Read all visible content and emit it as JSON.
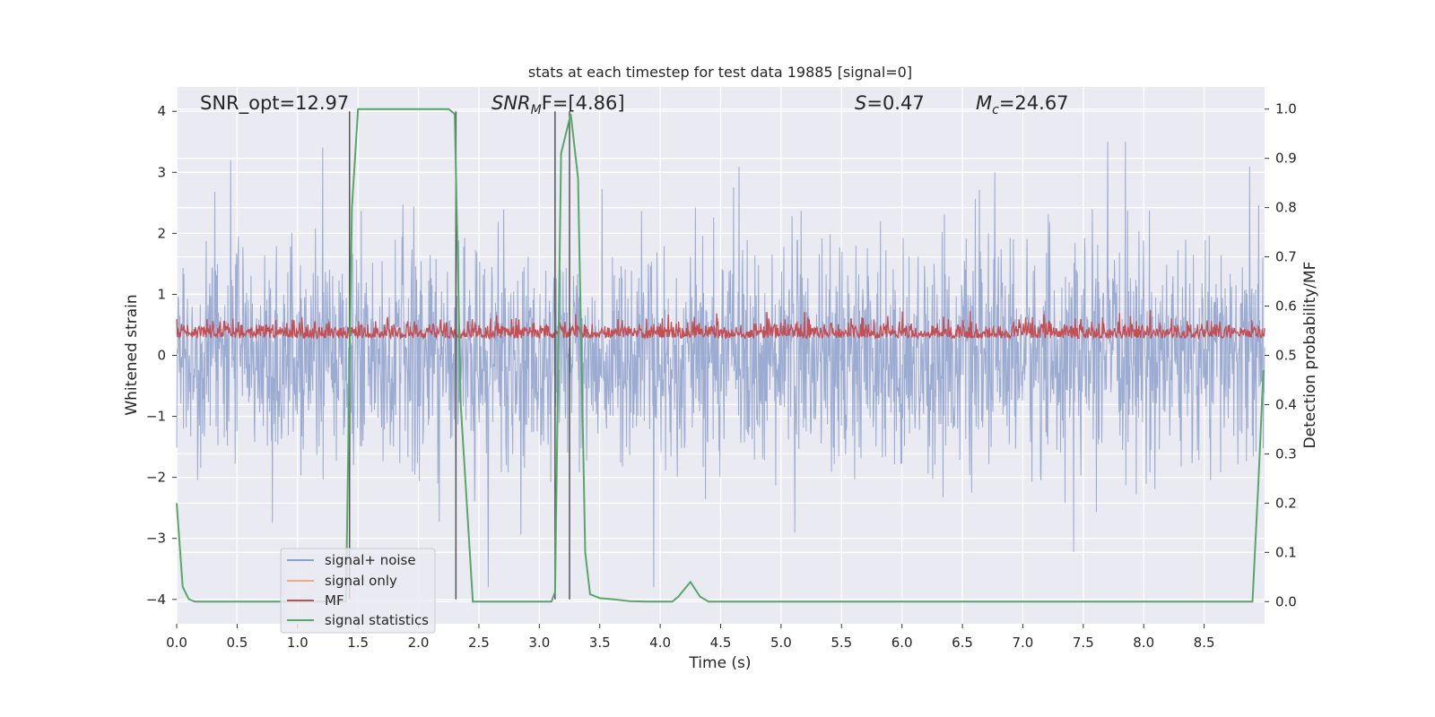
{
  "chart_data": {
    "type": "line",
    "title": "stats at each timestep for test data 19885 [signal=0]",
    "xlabel": "Time (s)",
    "ylabel_left": "Whitened strain",
    "ylabel_right": "Detection probability/MF",
    "xlim": [
      0.0,
      9.0
    ],
    "ylim_left": [
      -4.4,
      4.4
    ],
    "ylim_right": [
      -0.045,
      1.045
    ],
    "x_ticks": [
      "0.0",
      "0.5",
      "1.0",
      "1.5",
      "2.0",
      "2.5",
      "3.0",
      "3.5",
      "4.0",
      "4.5",
      "5.0",
      "5.5",
      "6.0",
      "6.5",
      "7.0",
      "7.5",
      "8.0",
      "8.5"
    ],
    "y_ticks_left": [
      "4",
      "3",
      "2",
      "1",
      "0",
      "−1",
      "−2",
      "−3",
      "−4"
    ],
    "y_ticks_right": [
      "1.0",
      "0.9",
      "0.8",
      "0.7",
      "0.6",
      "0.5",
      "0.4",
      "0.3",
      "0.2",
      "0.1",
      "0.0"
    ],
    "annotations": {
      "snr_opt": "SNR_opt=12.97",
      "snr_mf_base": "SNR",
      "snr_mf_sub": "M",
      "snr_mf_rest": "F=[4.86]",
      "s_label": "S",
      "s_value": "=0.47",
      "mc_label": "M",
      "mc_sub": "c",
      "mc_value": "=24.67"
    },
    "legend": {
      "location": "lower-left",
      "entries": [
        {
          "label": "signal+ noise",
          "color": "#8da0cb"
        },
        {
          "label": "signal only",
          "color": "#f4a582"
        },
        {
          "label": "MF",
          "color": "#c44e52"
        },
        {
          "label": "signal statistics",
          "color": "#55a868"
        }
      ]
    },
    "series": [
      {
        "name": "signal+ noise",
        "axis": "left",
        "color": "#8da0cb",
        "description": "whitened noise, amplitude about +/-1.6 typical, peaks to +/-3.6",
        "typical_envelope": [
          -1.6,
          1.6
        ],
        "peak_range": [
          -3.6,
          3.6
        ]
      },
      {
        "name": "MF",
        "axis": "left",
        "color": "#c44e52",
        "description": "matched filter output, range roughly 0 to 0.7",
        "range": [
          0.0,
          0.75
        ]
      },
      {
        "name": "signal statistics",
        "axis": "right",
        "color": "#55a868",
        "x": [
          0.0,
          0.05,
          0.1,
          0.15,
          0.2,
          0.3,
          0.5,
          0.8,
          1.0,
          1.2,
          1.4,
          1.45,
          1.5,
          2.0,
          2.25,
          2.3,
          2.35,
          2.45,
          2.5,
          3.0,
          3.1,
          3.13,
          3.18,
          3.26,
          3.32,
          3.38,
          3.42,
          3.5,
          3.6,
          3.75,
          3.9,
          4.1,
          4.15,
          4.25,
          4.33,
          4.4,
          5.0,
          6.0,
          7.0,
          8.0,
          8.9,
          8.95,
          8.99
        ],
        "values": [
          0.2,
          0.03,
          0.005,
          0.0,
          0.0,
          0.0,
          0.0,
          0.0,
          0.0,
          0.0,
          0.0,
          0.8,
          1.0,
          1.0,
          1.0,
          0.99,
          0.4,
          0.0,
          0.0,
          0.0,
          0.0,
          0.02,
          0.91,
          0.99,
          0.86,
          0.1,
          0.015,
          0.007,
          0.005,
          0.001,
          0.0,
          0.0,
          0.01,
          0.04,
          0.01,
          0.0,
          0.0,
          0.0,
          0.0,
          0.0,
          0.0,
          0.25,
          0.47
        ]
      }
    ],
    "vertical_lines": [
      1.43,
      2.31,
      3.13,
      3.25
    ]
  }
}
